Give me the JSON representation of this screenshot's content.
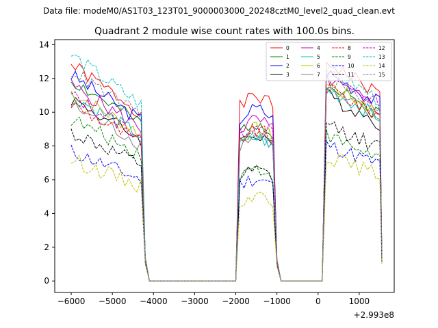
{
  "suptitle": "Data file: modeM0/AS1T03_123T01_9000003000_20248cztM0_level2_quad_clean.evt",
  "chart_data": {
    "type": "line",
    "title": "Quadrant 2 module wise count rates with 100.0s bins.",
    "xlabel": "",
    "ylabel": "",
    "x_offset_label": "+2.993e8",
    "xlim": [
      -6400,
      1850
    ],
    "ylim": [
      -0.68,
      14.3
    ],
    "xticks": [
      -6000,
      -5000,
      -4000,
      -3000,
      -2000,
      -1000,
      0,
      1000
    ],
    "xtick_labels": [
      "−6000",
      "−5000",
      "−4000",
      "−3000",
      "−2000",
      "−1000",
      "0",
      "1000"
    ],
    "yticks": [
      0,
      2,
      4,
      6,
      8,
      10,
      12,
      14
    ],
    "ytick_labels": [
      "0",
      "2",
      "4",
      "6",
      "8",
      "10",
      "12",
      "14"
    ],
    "legend_position": "top-right",
    "segments": [
      {
        "start": -6000,
        "end": -4300
      },
      {
        "start": -1900,
        "end": -1100
      },
      {
        "start": 200,
        "end": 1450
      }
    ],
    "series": [
      {
        "name": "0",
        "color": "#ff0000",
        "dash": "solid",
        "levels": [
          12.8,
          10.8,
          13.0
        ]
      },
      {
        "name": "1",
        "color": "#008000",
        "dash": "solid",
        "levels": [
          11.9,
          9.3,
          11.6
        ]
      },
      {
        "name": "2",
        "color": "#0000ff",
        "dash": "solid",
        "levels": [
          12.2,
          10.1,
          12.4
        ]
      },
      {
        "name": "3",
        "color": "#000000",
        "dash": "solid",
        "levels": [
          10.8,
          8.6,
          11.0
        ]
      },
      {
        "name": "4",
        "color": "#bf00bf",
        "dash": "solid",
        "levels": [
          11.6,
          9.4,
          12.0
        ]
      },
      {
        "name": "5",
        "color": "#00bfbf",
        "dash": "solid",
        "levels": [
          11.0,
          8.4,
          11.4
        ]
      },
      {
        "name": "6",
        "color": "#bfbf00",
        "dash": "solid",
        "levels": [
          11.2,
          8.9,
          11.7
        ]
      },
      {
        "name": "7",
        "color": "#808080",
        "dash": "solid",
        "levels": [
          10.4,
          8.5,
          11.3
        ]
      },
      {
        "name": "8",
        "color": "#ff0000",
        "dash": "dashed",
        "levels": [
          10.5,
          8.8,
          11.5
        ]
      },
      {
        "name": "9",
        "color": "#008000",
        "dash": "dashed",
        "levels": [
          9.6,
          6.6,
          8.6
        ]
      },
      {
        "name": "10",
        "color": "#0000ff",
        "dash": "dashed",
        "levels": [
          7.7,
          6.0,
          8.1
        ]
      },
      {
        "name": "11",
        "color": "#000000",
        "dash": "dashed",
        "levels": [
          8.8,
          6.4,
          9.3
        ]
      },
      {
        "name": "12",
        "color": "#bf00bf",
        "dash": "dashed",
        "levels": [
          11.0,
          9.1,
          12.3
        ]
      },
      {
        "name": "13",
        "color": "#00bfbf",
        "dash": "dashed",
        "levels": [
          13.4,
          8.6,
          12.6
        ]
      },
      {
        "name": "14",
        "color": "#bfbf00",
        "dash": "dashed",
        "levels": [
          7.2,
          5.0,
          7.4
        ]
      },
      {
        "name": "15",
        "color": "#808080",
        "dash": "dashed",
        "levels": [
          12.5,
          8.7,
          12.0
        ]
      }
    ]
  }
}
